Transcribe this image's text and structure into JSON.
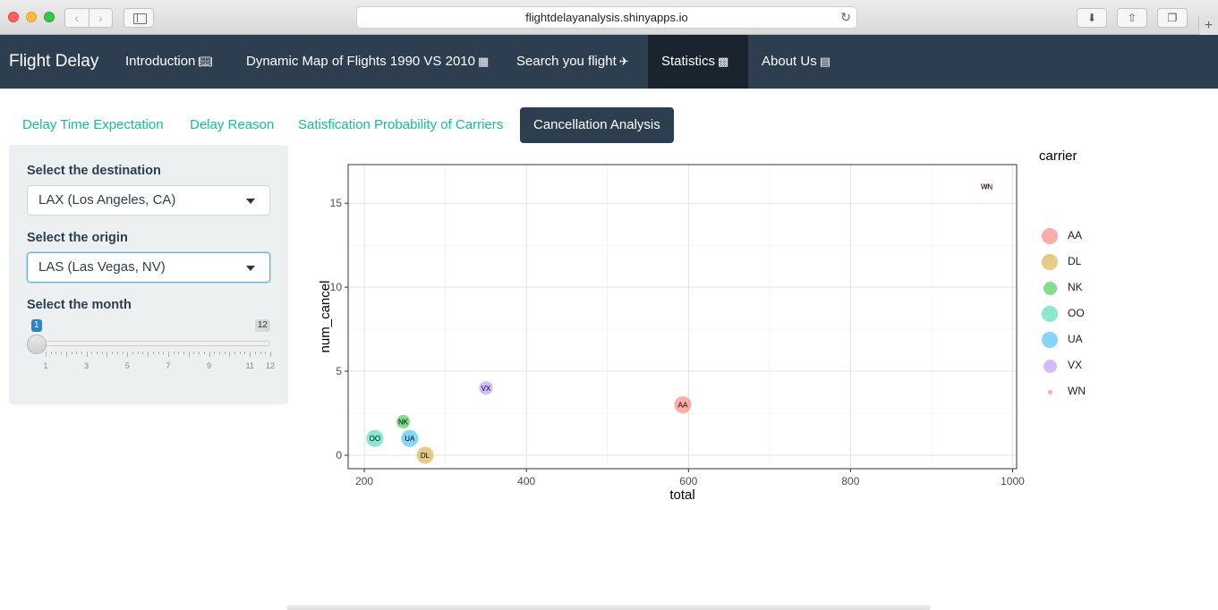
{
  "browser": {
    "url": "flightdelayanalysis.shinyapps.io"
  },
  "navbar": {
    "brand": "Flight Delay",
    "items": [
      {
        "label": "Introduction",
        "icon": "book-icon"
      },
      {
        "label": "Dynamic Map of Flights 1990 VS 2010",
        "icon": "map-icon"
      },
      {
        "label": "Search you flight",
        "icon": "plane-icon"
      },
      {
        "label": "Statistics",
        "icon": "bar-chart-icon",
        "active": true
      },
      {
        "label": "About Us",
        "icon": "id-card-icon"
      }
    ]
  },
  "tabs": [
    {
      "label": "Delay Time Expectation"
    },
    {
      "label": "Delay Reason"
    },
    {
      "label": "Satisfication Probability of Carriers"
    },
    {
      "label": "Cancellation Analysis",
      "active": true
    }
  ],
  "sidebar": {
    "destination_label": "Select the destination",
    "destination_value": "LAX (Los Angeles, CA)",
    "origin_label": "Select the origin",
    "origin_value": "LAS (Las Vegas, NV)",
    "month_label": "Select the month",
    "month_from": "1",
    "month_to": "12",
    "month_ticks": [
      "1",
      "3",
      "5",
      "7",
      "9",
      "11",
      "12"
    ]
  },
  "colors": {
    "navbar": "#2c3e50",
    "accent": "#18bc9c",
    "AA": "#f8766d",
    "DL": "#d4a935",
    "NK": "#34c441",
    "OO": "#3dd7b0",
    "UA": "#35b8f0",
    "VX": "#b98dfb",
    "WN": "#f564e3"
  },
  "chart_data": {
    "type": "scatter",
    "xlabel": "total",
    "ylabel": "num_cancel",
    "xlim": [
      180,
      1005
    ],
    "ylim": [
      -0.8,
      17.3
    ],
    "xticks": [
      200,
      400,
      600,
      800,
      1000
    ],
    "yticks": [
      0,
      5,
      10,
      15
    ],
    "grid": true,
    "legend_title": "carrier",
    "legend_position": "right",
    "points": [
      {
        "label": "AA",
        "x": 593,
        "y": 3,
        "size": "large"
      },
      {
        "label": "DL",
        "x": 275,
        "y": 0,
        "size": "large"
      },
      {
        "label": "NK",
        "x": 248,
        "y": 2,
        "size": "medium"
      },
      {
        "label": "OO",
        "x": 213,
        "y": 1,
        "size": "large"
      },
      {
        "label": "UA",
        "x": 256,
        "y": 1,
        "size": "large"
      },
      {
        "label": "VX",
        "x": 350,
        "y": 4,
        "size": "medium"
      },
      {
        "label": "WN",
        "x": 968,
        "y": 16,
        "size": "tiny"
      }
    ]
  }
}
